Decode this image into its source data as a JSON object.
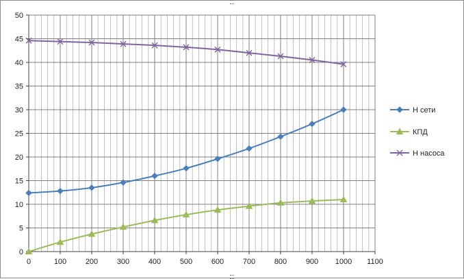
{
  "chart_data": {
    "type": "line",
    "title": "",
    "xlabel": "",
    "ylabel": "",
    "xlim": [
      0,
      1100
    ],
    "ylim": [
      0,
      50
    ],
    "x_ticks": [
      "0",
      "100",
      "200",
      "300",
      "400",
      "500",
      "600",
      "700",
      "800",
      "900",
      "1000",
      "1100"
    ],
    "y_ticks": [
      "0",
      "5",
      "10",
      "15",
      "20",
      "25",
      "30",
      "35",
      "40",
      "45",
      "50"
    ],
    "grid": true,
    "legend_position": "right",
    "x": [
      0,
      100,
      200,
      300,
      400,
      500,
      600,
      700,
      800,
      900,
      1000
    ],
    "series": [
      {
        "name": "Н сети",
        "color": "#4a7ebb",
        "marker": "diamond",
        "values": [
          12.4,
          12.8,
          13.5,
          14.6,
          16.0,
          17.6,
          19.6,
          21.8,
          24.3,
          27.0,
          30.0
        ]
      },
      {
        "name": "КПД",
        "color": "#9bbb59",
        "marker": "triangle",
        "values": [
          0,
          2.0,
          3.7,
          5.2,
          6.6,
          7.8,
          8.8,
          9.6,
          10.3,
          10.7,
          11.0
        ]
      },
      {
        "name": "Н насоса",
        "color": "#8064a2",
        "marker": "cross",
        "values": [
          44.6,
          44.4,
          44.2,
          43.9,
          43.6,
          43.2,
          42.7,
          42.0,
          41.3,
          40.5,
          39.6
        ]
      }
    ]
  }
}
